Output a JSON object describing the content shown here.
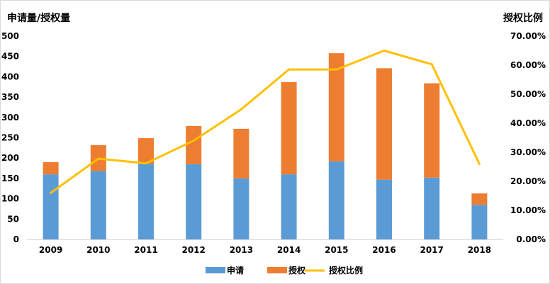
{
  "chart_data": {
    "type": "bar",
    "stacked": true,
    "categories": [
      "2009",
      "2010",
      "2011",
      "2012",
      "2013",
      "2014",
      "2015",
      "2016",
      "2017",
      "2018"
    ],
    "series": [
      {
        "name": "申请",
        "kind": "bar",
        "color": "#5B9BD5",
        "values": [
          160,
          168,
          186,
          185,
          150,
          160,
          192,
          147,
          152,
          85
        ]
      },
      {
        "name": "授权",
        "kind": "bar",
        "color": "#ED7D31",
        "values": [
          30,
          64,
          63,
          94,
          122,
          227,
          266,
          274,
          232,
          28
        ]
      },
      {
        "name": "授权比例",
        "kind": "line",
        "axis": "right",
        "color": "#FFC000",
        "values": [
          0.16,
          0.278,
          0.262,
          0.34,
          0.448,
          0.585,
          0.585,
          0.65,
          0.603,
          0.26
        ]
      }
    ],
    "ylabel": "申请量/授权量",
    "y2label": "授权比例",
    "ylim": [
      0,
      500
    ],
    "y2lim": [
      0,
      0.7
    ],
    "yticks": [
      "0",
      "50",
      "100",
      "150",
      "200",
      "250",
      "300",
      "350",
      "400",
      "450",
      "500"
    ],
    "y2ticks": [
      "0.00%",
      "10.00%",
      "20.00%",
      "30.00%",
      "40.00%",
      "50.00%",
      "60.00%",
      "70.00%"
    ],
    "grid": false,
    "legend_position": "bottom"
  }
}
